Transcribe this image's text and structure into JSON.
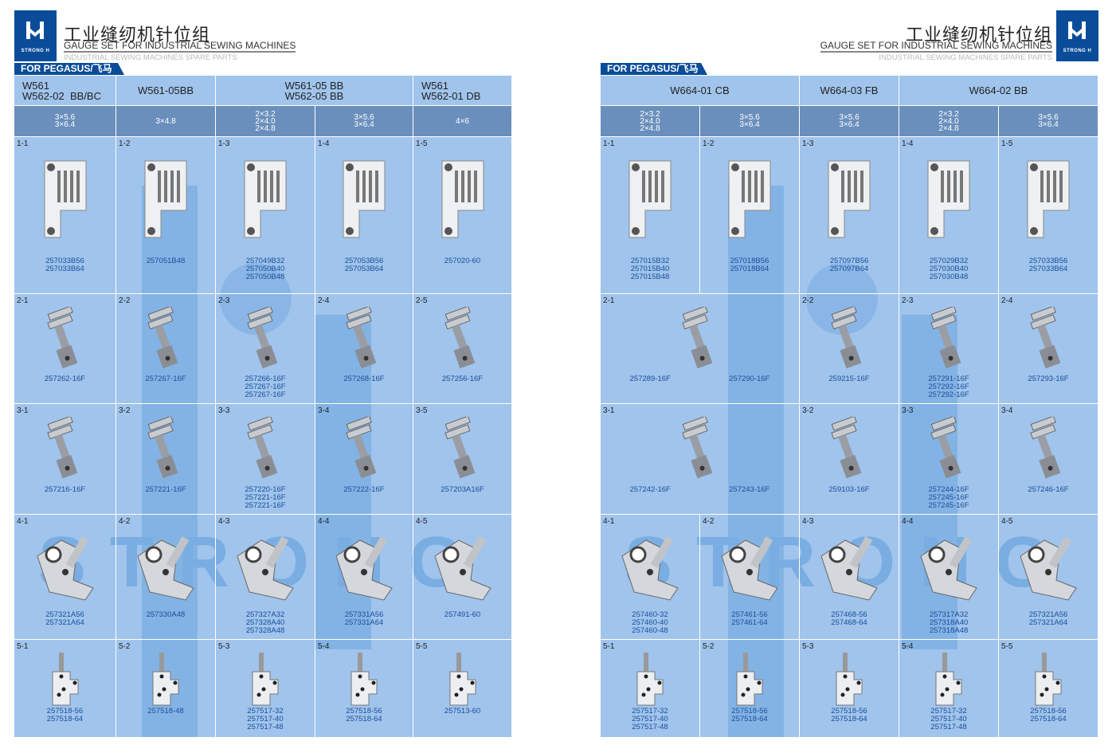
{
  "brand": {
    "logo_text": "STRONG H",
    "title_cn": "工业缝纫机针位组",
    "title_en": "GAUGE SET FOR INDUSTRIAL SEWING MACHINES",
    "subtitle": "INDUSTRIAL SEWING MACHINES SPARE PARTS",
    "watermark": "STRONG H",
    "color": "#0a4c99"
  },
  "pages": [
    {
      "tag": "FOR PEGASUS/飞马",
      "models": [
        {
          "label": "W561\nW562-02  BB/BC",
          "span": 1,
          "align": "left"
        },
        {
          "label": "W561-05BB",
          "span": 1
        },
        {
          "label": "W561-05 BB\nW562-05 BB",
          "span": 2
        },
        {
          "label": "W561\nW562-01 DB",
          "span": 1,
          "align": "left"
        }
      ],
      "sizes": [
        "3×5.6\n3×6.4",
        "3×4.8",
        "2×3.2\n2×4.0\n2×4.8",
        "3×5.6\n3×6.4",
        "4×6"
      ],
      "rows": [
        [
          {
            "id": "1-1",
            "parts": [
              "257033B56",
              "257033B64"
            ]
          },
          {
            "id": "1-2",
            "parts": [
              "257051B48"
            ]
          },
          {
            "id": "1-3",
            "parts": [
              "257049B32",
              "257050B40",
              "257050B48"
            ]
          },
          {
            "id": "1-4",
            "parts": [
              "257053B56",
              "257053B64"
            ]
          },
          {
            "id": "1-5",
            "parts": [
              "257020-60"
            ]
          }
        ],
        [
          {
            "id": "2-1",
            "parts": [
              "257262-16F"
            ]
          },
          {
            "id": "2-2",
            "parts": [
              "257267-16F"
            ]
          },
          {
            "id": "2-3",
            "parts": [
              "257266-16F",
              "257267-16F",
              "257267-16F"
            ]
          },
          {
            "id": "2-4",
            "parts": [
              "257268-16F"
            ]
          },
          {
            "id": "2-5",
            "parts": [
              "257256-16F"
            ]
          }
        ],
        [
          {
            "id": "3-1",
            "parts": [
              "257216-16F"
            ]
          },
          {
            "id": "3-2",
            "parts": [
              "257221-16F"
            ]
          },
          {
            "id": "3-3",
            "parts": [
              "257220-16F",
              "257221-16F",
              "257221-16F"
            ]
          },
          {
            "id": "3-4",
            "parts": [
              "257222-16F"
            ]
          },
          {
            "id": "3-5",
            "parts": [
              "257203A16F"
            ]
          }
        ],
        [
          {
            "id": "4-1",
            "parts": [
              "257321A56",
              "257321A64"
            ]
          },
          {
            "id": "4-2",
            "parts": [
              "257330A48"
            ]
          },
          {
            "id": "4-3",
            "parts": [
              "257327A32",
              "257328A40",
              "257328A48"
            ]
          },
          {
            "id": "4-4",
            "parts": [
              "257331A56",
              "257331A64"
            ]
          },
          {
            "id": "4-5",
            "parts": [
              "257491-60"
            ]
          }
        ],
        [
          {
            "id": "5-1",
            "parts": [
              "257518-56",
              "257518-64"
            ]
          },
          {
            "id": "5-2",
            "parts": [
              "257518-48"
            ]
          },
          {
            "id": "5-3",
            "parts": [
              "257517-32",
              "257517-40",
              "257517-48"
            ]
          },
          {
            "id": "5-4",
            "parts": [
              "257518-56",
              "257518-64"
            ]
          },
          {
            "id": "5-5",
            "parts": [
              "257513-60"
            ]
          }
        ]
      ]
    },
    {
      "tag": "FOR PEGASUS/飞马",
      "models": [
        {
          "label": "W664-01 CB",
          "span": 2
        },
        {
          "label": "W664-03 FB",
          "span": 1
        },
        {
          "label": "W664-02 BB",
          "span": 2
        }
      ],
      "sizes": [
        "2×3.2\n2×4.0\n2×4.8",
        "3×5.6\n3×6.4",
        "3×5.6\n3×6.4",
        "2×3.2\n2×4.0\n2×4.8",
        "3×5.6\n3×6.4"
      ],
      "rows": [
        [
          {
            "id": "1-1",
            "parts": [
              "257015B32",
              "257015B40",
              "257015B48"
            ]
          },
          {
            "id": "1-2",
            "parts": [
              "257018B56",
              "257018B64"
            ]
          },
          {
            "id": "1-3",
            "parts": [
              "257097B56",
              "257097B64"
            ]
          },
          {
            "id": "1-4",
            "parts": [
              "257029B32",
              "257030B40",
              "257030B48"
            ]
          },
          {
            "id": "1-5",
            "parts": [
              "257033B56",
              "257033B64"
            ]
          }
        ],
        [
          {
            "id": "2-1",
            "span": 2,
            "groups": [
              [
                "257289-16F"
              ],
              [
                "257290-16F"
              ]
            ]
          },
          {
            "id": "2-2",
            "parts": [
              "259215-16F"
            ]
          },
          {
            "id": "2-3",
            "parts": [
              "257291-16F",
              "257292-16F",
              "257292-16F"
            ]
          },
          {
            "id": "2-4",
            "parts": [
              "257293-16F"
            ]
          }
        ],
        [
          {
            "id": "3-1",
            "span": 2,
            "groups": [
              [
                "257242-16F"
              ],
              [
                "257243-16F"
              ]
            ]
          },
          {
            "id": "3-2",
            "parts": [
              "259103-16F"
            ]
          },
          {
            "id": "3-3",
            "parts": [
              "257244-16F",
              "257245-16F",
              "257245-16F"
            ]
          },
          {
            "id": "3-4",
            "parts": [
              "257246-16F"
            ]
          }
        ],
        [
          {
            "id": "4-1",
            "parts": [
              "257460-32",
              "257460-40",
              "257460-48"
            ]
          },
          {
            "id": "4-2",
            "parts": [
              "257461-56",
              "257461-64"
            ]
          },
          {
            "id": "4-3",
            "parts": [
              "257468-56",
              "257468-64"
            ]
          },
          {
            "id": "4-4",
            "parts": [
              "257317A32",
              "257318A40",
              "257318A48"
            ]
          },
          {
            "id": "4-5",
            "parts": [
              "257321A56",
              "257321A64"
            ]
          }
        ],
        [
          {
            "id": "5-1",
            "parts": [
              "257517-32",
              "257517-40",
              "257517-48"
            ]
          },
          {
            "id": "5-2",
            "parts": [
              "257518-56",
              "257518-64"
            ]
          },
          {
            "id": "5-3",
            "parts": [
              "257518-56",
              "257518-64"
            ]
          },
          {
            "id": "5-4",
            "parts": [
              "257517-32",
              "257517-40",
              "257517-48"
            ]
          },
          {
            "id": "5-5",
            "parts": [
              "257518-56",
              "257518-64"
            ]
          }
        ]
      ]
    }
  ]
}
